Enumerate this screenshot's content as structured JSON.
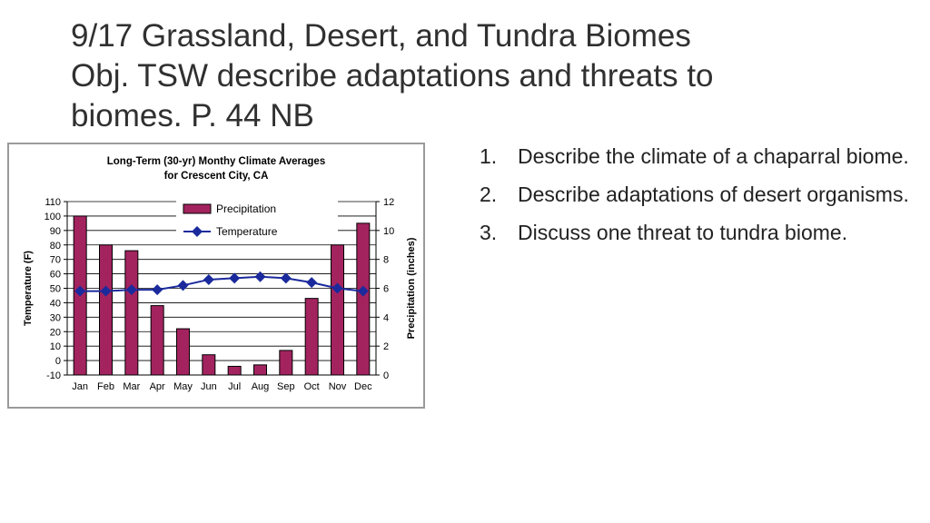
{
  "slide": {
    "title_lines": [
      "9/17 Grassland, Desert, and Tundra Biomes",
      "Obj. TSW describe adaptations and threats to",
      "biomes. P. 44 NB"
    ],
    "questions": [
      {
        "num": "1.",
        "text": "Describe the climate of a chaparral biome."
      },
      {
        "num": "2.",
        "text": "Describe adaptations of desert organisms."
      },
      {
        "num": "3.",
        "text": "Discuss one threat to tundra biome."
      }
    ]
  },
  "chart_data": {
    "type": "bar",
    "title": "Long-Term (30-yr) Monthy Climate Averages",
    "subtitle": "for Crescent City, CA",
    "categories": [
      "Jan",
      "Feb",
      "Mar",
      "Apr",
      "May",
      "Jun",
      "Jul",
      "Aug",
      "Sep",
      "Oct",
      "Nov",
      "Dec"
    ],
    "ylabel": "Temperature (F)",
    "y2label": "Precipitation (inches)",
    "ylim": [
      -10,
      110
    ],
    "y2lim": [
      0,
      12
    ],
    "yticks": [
      "110",
      "100",
      "90",
      "80",
      "70",
      "60",
      "50",
      "40",
      "30",
      "20",
      "10",
      "0",
      "-10"
    ],
    "y2ticks": [
      "12",
      "10",
      "8",
      "6",
      "4",
      "2",
      "0"
    ],
    "legend_position": "top-center",
    "grid": true,
    "series": [
      {
        "name": "Precipitation",
        "kind": "bar",
        "axis": "right",
        "color": "#a3235f",
        "values": [
          11.0,
          9.0,
          8.6,
          4.8,
          3.2,
          1.4,
          0.6,
          0.7,
          1.7,
          5.3,
          9.0,
          10.5
        ]
      },
      {
        "name": "Temperature",
        "kind": "line",
        "axis": "left",
        "color": "#1a2a9c",
        "values": [
          48,
          48,
          49,
          49,
          52,
          56,
          57,
          58,
          57,
          54,
          50,
          48
        ]
      }
    ]
  }
}
